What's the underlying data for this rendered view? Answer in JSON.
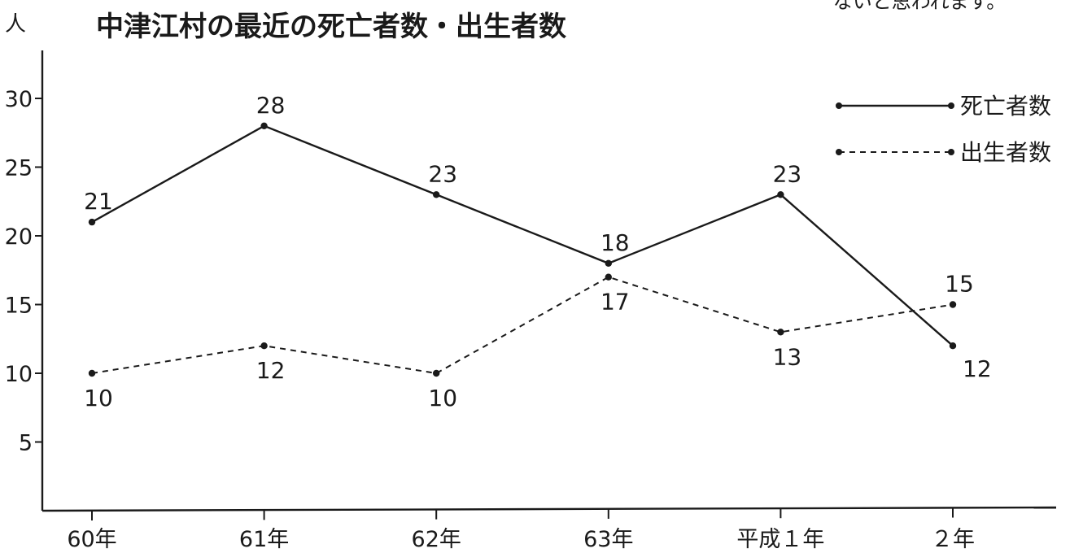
{
  "corner_note": "ないと思われます。",
  "chart_data": {
    "type": "line",
    "title": "中津江村の最近の死亡者数・出生者数",
    "ylabel": "人",
    "xlabel": "",
    "categories": [
      "60年",
      "61年",
      "62年",
      "63年",
      "平成１年",
      "２年"
    ],
    "ylim": [
      0,
      35
    ],
    "yticks": [
      5,
      10,
      15,
      20,
      25,
      30
    ],
    "grid": false,
    "legend_position": "top-right",
    "series": [
      {
        "name": "死亡者数",
        "style": "solid",
        "values": [
          21,
          28,
          23,
          18,
          23,
          12
        ],
        "labels": [
          "21",
          "28",
          "23",
          "18",
          "23",
          "12"
        ]
      },
      {
        "name": "出生者数",
        "style": "dashed",
        "values": [
          10,
          12,
          10,
          17,
          13,
          15
        ],
        "labels": [
          "10",
          "12",
          "10",
          "17",
          "13",
          "15"
        ]
      }
    ]
  }
}
